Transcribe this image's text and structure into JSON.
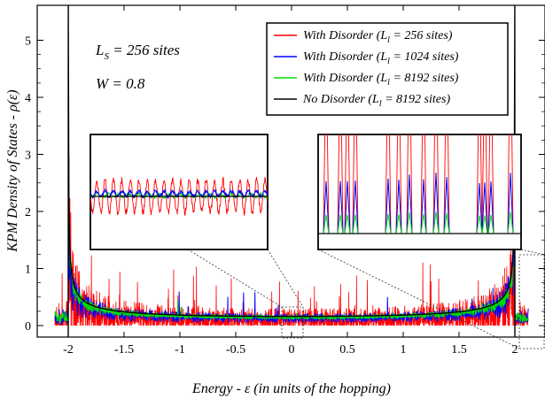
{
  "chart_data": {
    "type": "line",
    "xlabel": "Energy - ε (in units of the hopping)",
    "ylabel": "KPM Density of States - ρ(ε)",
    "xlim": [
      -2.25,
      2.25
    ],
    "ylim": [
      -0.1,
      5
    ],
    "x_ticks": [
      "-2",
      "-1.5",
      "-1",
      "-0.5",
      "0",
      "0.5",
      "1",
      "1.5",
      "2"
    ],
    "x_tick_values": [
      -2,
      -1.5,
      -1,
      -0.5,
      0,
      0.5,
      1,
      1.5,
      2
    ],
    "y_ticks": [
      "0",
      "1",
      "2",
      "3",
      "4",
      "5"
    ],
    "y_tick_values": [
      0,
      1,
      2,
      3,
      4,
      5
    ],
    "annotations": {
      "ls": {
        "main": "L",
        "sub": "S",
        "rest": " = 256 sites"
      },
      "w": "W = 0.8"
    },
    "legend_position": "top-right",
    "series": [
      {
        "legend_pre": "With Disorder (L",
        "legend_sub": "l",
        "legend_post": " = 256 sites)",
        "color": "#ff0000"
      },
      {
        "legend_pre": "With Disorder (L",
        "legend_sub": "l",
        "legend_post": " = 1024 sites)",
        "color": "#0000ff"
      },
      {
        "legend_pre": "With Disorder (L",
        "legend_sub": "l",
        "legend_post": " = 8192 sites)",
        "color": "#00dd00"
      },
      {
        "legend_pre": "No Disorder (L",
        "legend_sub": "l",
        "legend_post": " = 8192 sites)",
        "color": "#000000"
      }
    ],
    "curve_model": "clean DOS rho(e) = 1/(pi*sqrt(4 - e^2)) with van Hove peaks at e = ±2",
    "insets": [
      {
        "name": "zoom near e = 0",
        "x_range": [
          -0.05,
          0.05
        ],
        "y_range": [
          0.1,
          0.3
        ]
      },
      {
        "name": "zoom near band edge",
        "x_range": [
          1.9,
          2.0
        ],
        "y_range": [
          0,
          0.3
        ]
      }
    ]
  }
}
